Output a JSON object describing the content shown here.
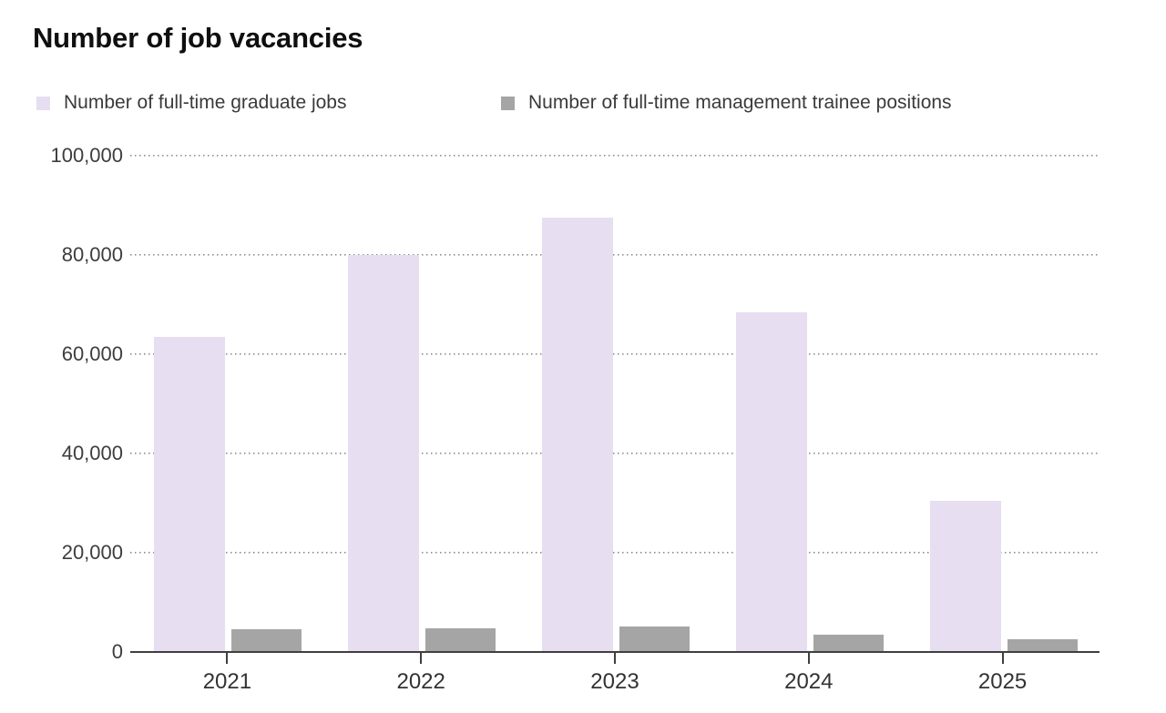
{
  "chart": {
    "title": "Number of job vacancies"
  },
  "chart_data": {
    "type": "bar",
    "title": "Number of job vacancies",
    "categories": [
      "2021",
      "2022",
      "2023",
      "2024",
      "2025"
    ],
    "series": [
      {
        "name": "Number of full-time graduate jobs",
        "color": "#e7def1",
        "values": [
          63500,
          80000,
          87500,
          68500,
          30500
        ]
      },
      {
        "name": "Number of full-time management trainee positions",
        "color": "#a5a5a5",
        "values": [
          4500,
          4700,
          5200,
          3500,
          2500
        ]
      }
    ],
    "ylim": [
      0,
      100000
    ],
    "yticks": [
      0,
      20000,
      40000,
      60000,
      80000,
      100000
    ],
    "ytick_labels": [
      "0",
      "20,000",
      "40,000",
      "60,000",
      "80,000",
      "100,000"
    ],
    "grid": "horizontal-dotted",
    "legend_position": "top",
    "axis_colors": {
      "line": "#3f3f3f",
      "label": "#3d3d3d",
      "grid": "#8c8c8c"
    }
  }
}
